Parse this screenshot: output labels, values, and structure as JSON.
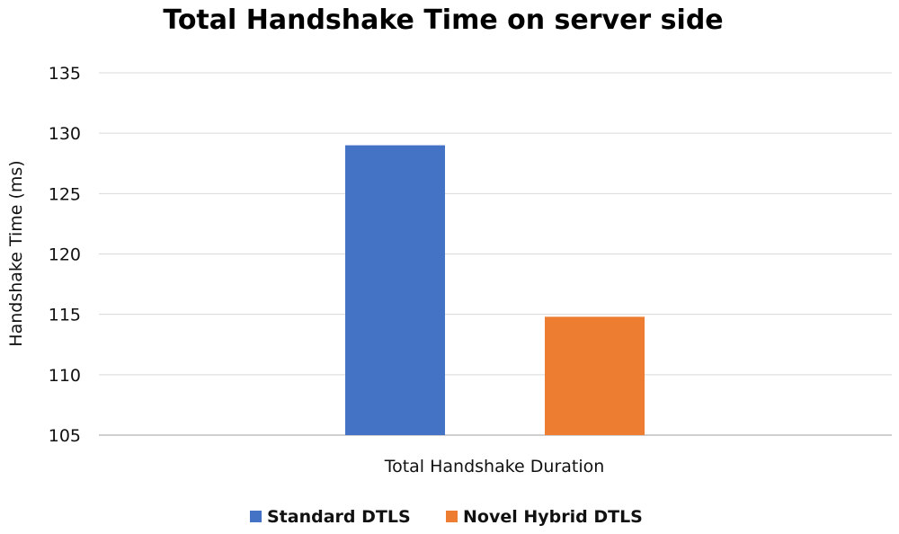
{
  "chart_data": {
    "type": "bar",
    "title": "Total Handshake Time on server side",
    "xlabel": "Total Handshake Duration",
    "ylabel": "Handshake Time (ms)",
    "categories": [
      "Total Handshake Duration"
    ],
    "series": [
      {
        "name": "Standard DTLS",
        "values": [
          129
        ],
        "color": "#4472C4"
      },
      {
        "name": "Novel Hybrid DTLS",
        "values": [
          114.8
        ],
        "color": "#ED7D31"
      }
    ],
    "ylim": [
      105,
      135
    ],
    "yticks": [
      "105",
      "110",
      "115",
      "120",
      "125",
      "130",
      "135"
    ],
    "grid": true,
    "legend": "bottom"
  }
}
